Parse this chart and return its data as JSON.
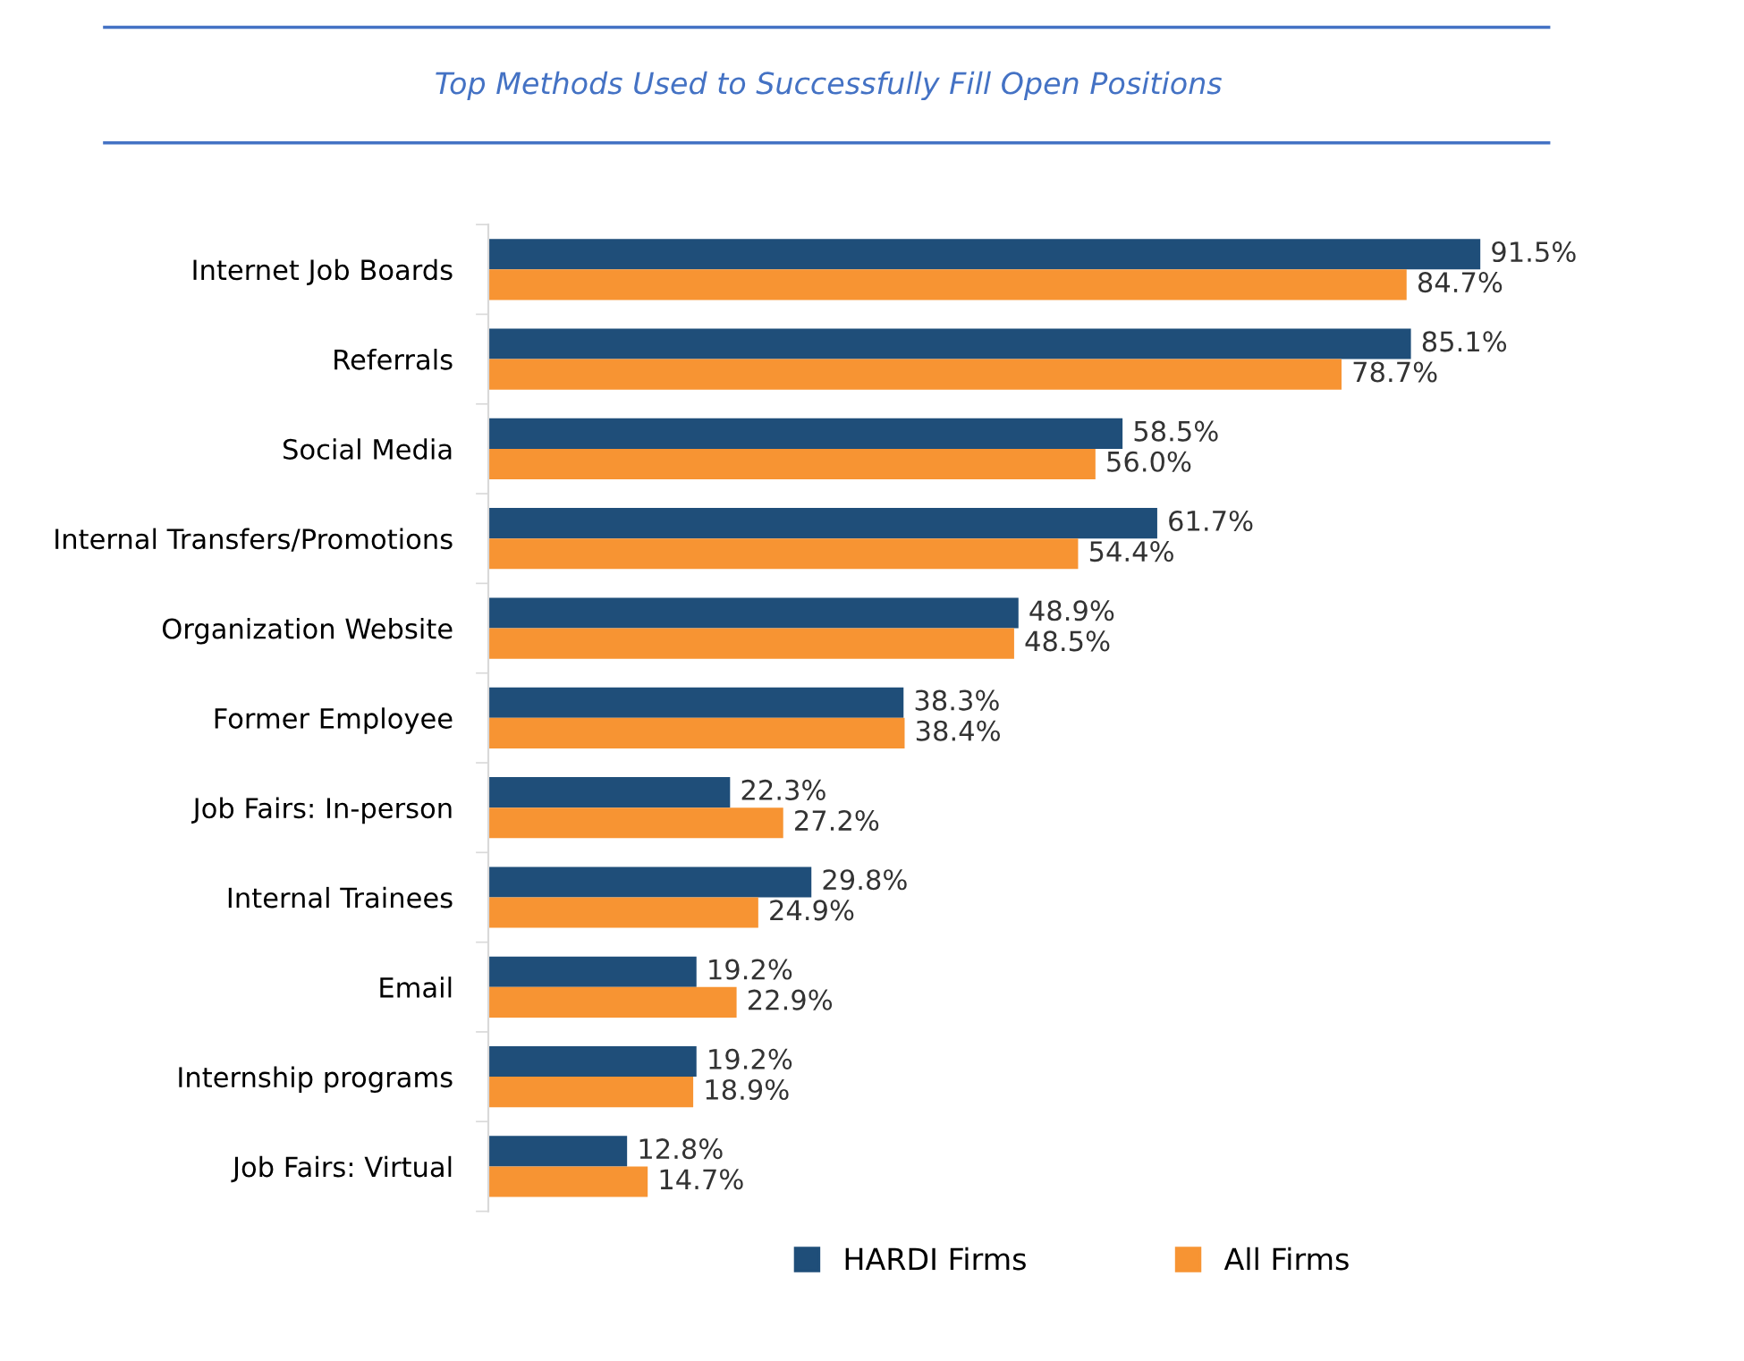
{
  "chart_data": {
    "type": "bar",
    "orientation": "horizontal",
    "title": "Top Methods Used to Successfully Fill Open Positions",
    "categories": [
      "Internet Job Boards",
      "Referrals",
      "Social Media",
      "Internal Transfers/Promotions",
      "Organization Website",
      "Former Employee",
      "Job Fairs: In-person",
      "Internal Trainees",
      "Email",
      "Internship programs",
      "Job Fairs: Virtual"
    ],
    "series": [
      {
        "name": "HARDI Firms",
        "color": "#1f4e79",
        "values": [
          91.5,
          85.1,
          58.5,
          61.7,
          48.9,
          38.3,
          22.3,
          29.8,
          19.2,
          19.2,
          12.8
        ],
        "value_labels": [
          "91.5%",
          "85.1%",
          "58.5%",
          "61.7%",
          "48.9%",
          "38.3%",
          "22.3%",
          "29.8%",
          "19.2%",
          "19.2%",
          "12.8%"
        ]
      },
      {
        "name": "All Firms",
        "color": "#f79433",
        "values": [
          84.7,
          78.7,
          56.0,
          54.4,
          48.5,
          38.4,
          27.2,
          24.9,
          22.9,
          18.9,
          14.7
        ],
        "value_labels": [
          "84.7%",
          "78.7%",
          "56.0%",
          "54.4%",
          "48.5%",
          "38.4%",
          "27.2%",
          "24.9%",
          "22.9%",
          "18.9%",
          "14.7%"
        ]
      }
    ],
    "legend": "bottom"
  }
}
